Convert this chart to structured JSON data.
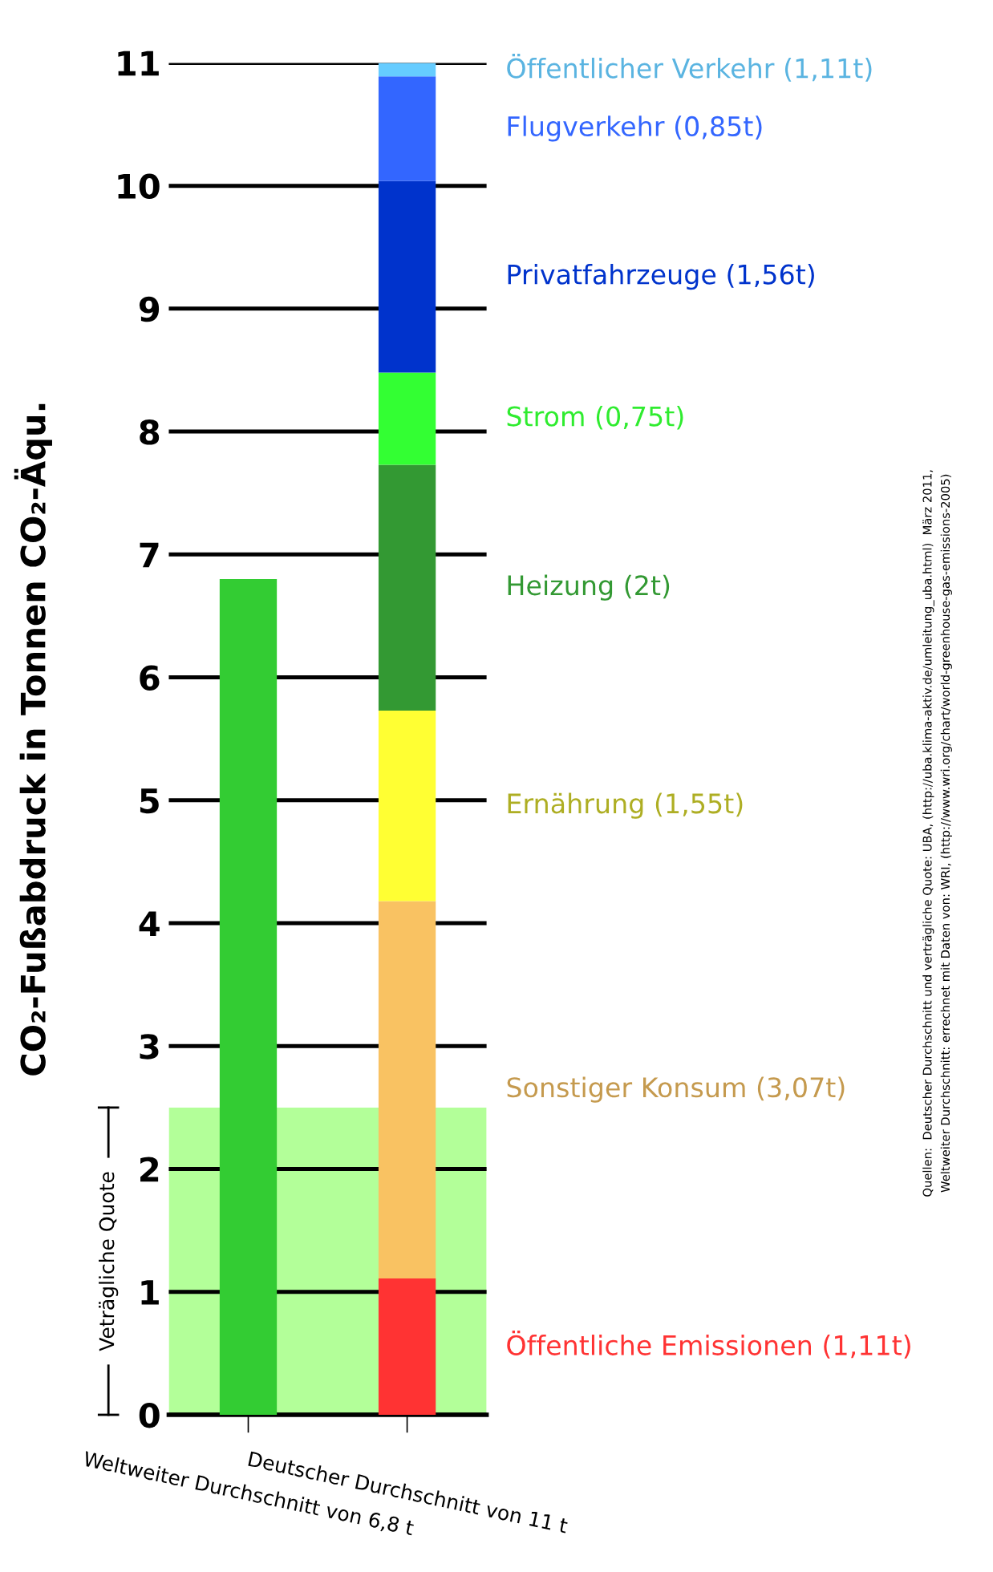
{
  "chart_data": {
    "type": "bar",
    "stacked": true,
    "ylabel": "CO₂-Fußabdruck in Tonnen CO₂-Äqu.",
    "categories": [
      "Weltweiter Durchschnitt von 6,8 t",
      "Deutscher Durchschnitt von 11 t"
    ],
    "series": [
      {
        "color": "#33cc33",
        "values": [
          6.8,
          null
        ]
      },
      {
        "name": "Öffentliche Emissionen (1,11t)",
        "color": "#ff3333",
        "values": [
          null,
          1.11
        ]
      },
      {
        "name": "Sonstiger Konsum (3,07t)",
        "color": "#f9c262",
        "values": [
          null,
          3.07
        ]
      },
      {
        "name": "Ernährung (1,55t)",
        "color": "#ffff33",
        "values": [
          null,
          1.55
        ]
      },
      {
        "name": "Heizung (2t)",
        "color": "#339933",
        "values": [
          null,
          2
        ]
      },
      {
        "name": "Strom (0,75t)",
        "color": "#33ff33",
        "values": [
          null,
          0.75
        ]
      },
      {
        "name": "Privatfahrzeuge (1,56t)",
        "color": "#0033cc",
        "values": [
          null,
          1.56
        ]
      },
      {
        "name": "Flugverkehr (0,85t)",
        "color": "#3366ff",
        "values": [
          null,
          0.85
        ]
      },
      {
        "name": "Öffentlicher Verkehr (1,11t)",
        "color": "#66ccff",
        "values": [
          null,
          0.11
        ]
      }
    ],
    "ylim": [
      0,
      11
    ],
    "yticks": [
      0,
      1,
      2,
      3,
      4,
      5,
      6,
      7,
      8,
      9,
      10,
      11
    ],
    "grid": "y",
    "bands": [
      {
        "axis": "y",
        "from": 0,
        "to": 2.5,
        "label": "Veträgliche Quote",
        "color": "#b3ff99"
      }
    ],
    "annotations": [
      "Quellen:  Deutscher Durchschnitt und verträgliche Quote: UBA, (http://uba.klima-aktiv.de/umleitung_uba.html)  März 2011,",
      "Weltweiter Durchschnitt: errechnet mit Daten von: WRI, (http://www.wri.org/chart/world-greenhouse-gas-emissions-2005)"
    ]
  }
}
